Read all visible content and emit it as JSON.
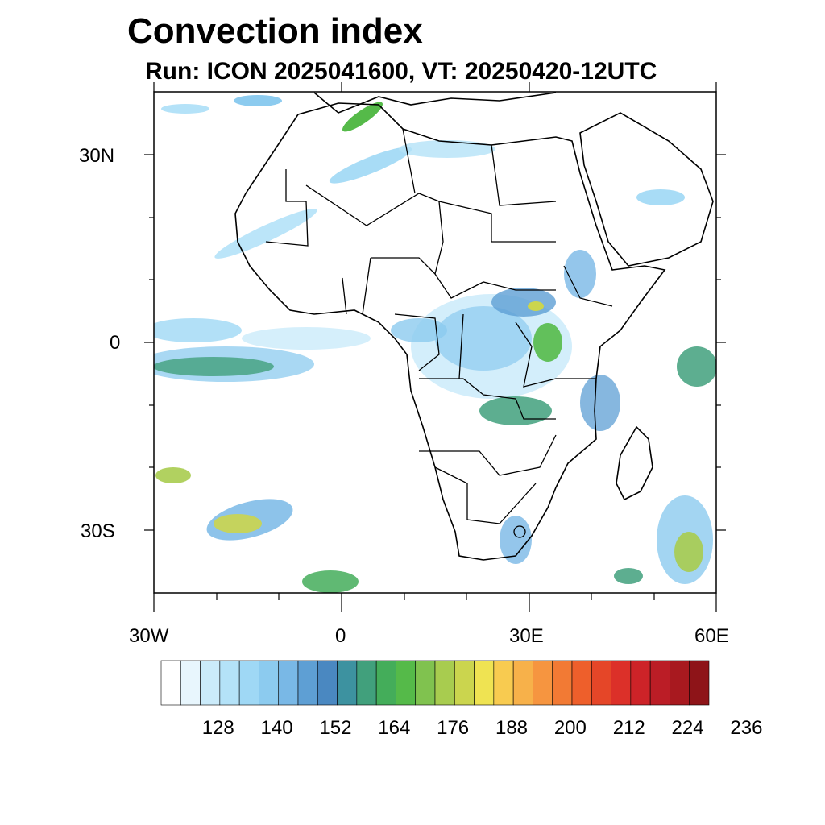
{
  "title": "Convection index",
  "subtitle": "Run: ICON 2025041600,  VT: 20250420-12UTC",
  "axes": {
    "lat_labels": [
      "30N",
      "0",
      "30S"
    ],
    "lon_labels": [
      "30W",
      "0",
      "30E",
      "60E"
    ]
  },
  "colorbar": {
    "tick_labels": [
      "128",
      "140",
      "152",
      "164",
      "176",
      "188",
      "200",
      "212",
      "224",
      "236"
    ],
    "colors": [
      "#ffffff",
      "#e8f6fd",
      "#cbebfa",
      "#b4e2f8",
      "#9fd8f5",
      "#8ccbef",
      "#79b8e6",
      "#5e9fd4",
      "#4a88c1",
      "#3d92a0",
      "#41a07c",
      "#44ad5a",
      "#55ba49",
      "#80c24f",
      "#a8cc4f",
      "#cbd54e",
      "#efe352",
      "#f8cb50",
      "#f7b14a",
      "#f69540",
      "#f27a34",
      "#ee5f2b",
      "#e54628",
      "#dc3029",
      "#cd2328",
      "#bb1d26",
      "#a8191f",
      "#8e1418"
    ]
  },
  "colors": {
    "land_border": "#000000",
    "background": "#ffffff"
  }
}
